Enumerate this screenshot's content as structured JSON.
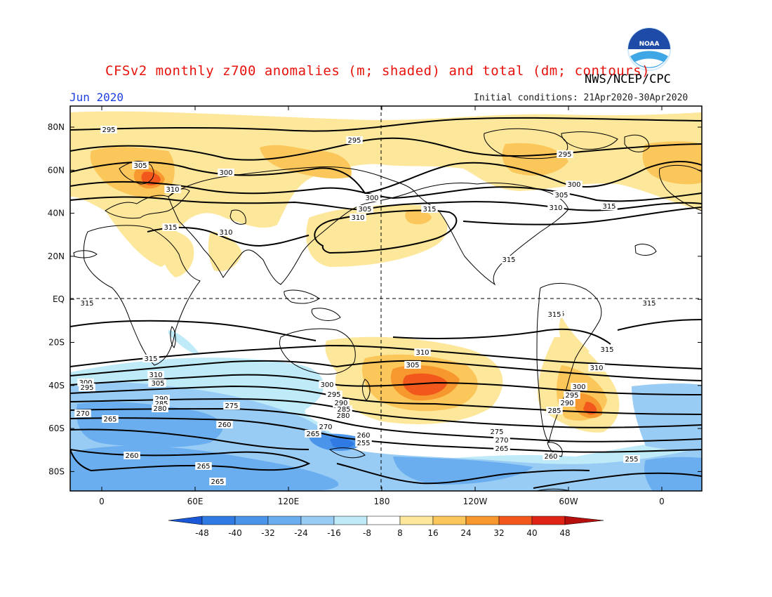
{
  "title": "CFSv2 monthly z700 anomalies (m; shaded) and total (dm; contours)",
  "agency": "NWS/NCEP/CPC",
  "logo_text": "NOAA",
  "valid_month": "Jun 2020",
  "initial_conditions": "Initial conditions: 21Apr2020-30Apr2020",
  "lat_labels": [
    "80N",
    "60N",
    "40N",
    "20N",
    "EQ",
    "20S",
    "40S",
    "60S",
    "80S"
  ],
  "lon_labels": [
    "0",
    "60E",
    "120E",
    "180",
    "120W",
    "60W",
    "0"
  ],
  "colorbar": {
    "tick_labels": [
      "-48",
      "-40",
      "-32",
      "-24",
      "-16",
      "-8",
      "8",
      "16",
      "24",
      "32",
      "40",
      "48"
    ],
    "colors": [
      "#1a57d6",
      "#2f7ae3",
      "#4a95ea",
      "#6aaeef",
      "#99ccf5",
      "#bfeaf8",
      "#ffffff",
      "#fde79a",
      "#fbc65a",
      "#f7982e",
      "#f2581c",
      "#df2416",
      "#b70e0e"
    ]
  },
  "contour_labels": [
    {
      "text": "295"
    },
    {
      "text": "295"
    },
    {
      "text": "295"
    },
    {
      "text": "305"
    },
    {
      "text": "300"
    },
    {
      "text": "310"
    },
    {
      "text": "300"
    },
    {
      "text": "305"
    },
    {
      "text": "310"
    },
    {
      "text": "315"
    },
    {
      "text": "300"
    },
    {
      "text": "305"
    },
    {
      "text": "310"
    },
    {
      "text": "315"
    },
    {
      "text": "315"
    },
    {
      "text": "310"
    },
    {
      "text": "315"
    },
    {
      "text": "315"
    },
    {
      "text": "315"
    },
    {
      "text": "315"
    },
    {
      "text": "315"
    },
    {
      "text": "310"
    },
    {
      "text": "305"
    },
    {
      "text": "310"
    },
    {
      "text": "305"
    },
    {
      "text": "300"
    },
    {
      "text": "295"
    },
    {
      "text": "290"
    },
    {
      "text": "285"
    },
    {
      "text": "280"
    },
    {
      "text": "270"
    },
    {
      "text": "265"
    },
    {
      "text": "260"
    },
    {
      "text": "255"
    },
    {
      "text": "275"
    },
    {
      "text": "270"
    },
    {
      "text": "265"
    },
    {
      "text": "260"
    },
    {
      "text": "255"
    },
    {
      "text": "310"
    },
    {
      "text": "305"
    },
    {
      "text": "300"
    },
    {
      "text": "295"
    },
    {
      "text": "290"
    },
    {
      "text": "285"
    },
    {
      "text": "280"
    },
    {
      "text": "300"
    },
    {
      "text": "295"
    },
    {
      "text": "290"
    },
    {
      "text": "285"
    },
    {
      "text": "290"
    },
    {
      "text": "270"
    },
    {
      "text": "265"
    },
    {
      "text": "275"
    },
    {
      "text": "260"
    },
    {
      "text": "265"
    },
    {
      "text": "260"
    },
    {
      "text": "265"
    },
    {
      "text": "315"
    },
    {
      "text": "315"
    }
  ]
}
